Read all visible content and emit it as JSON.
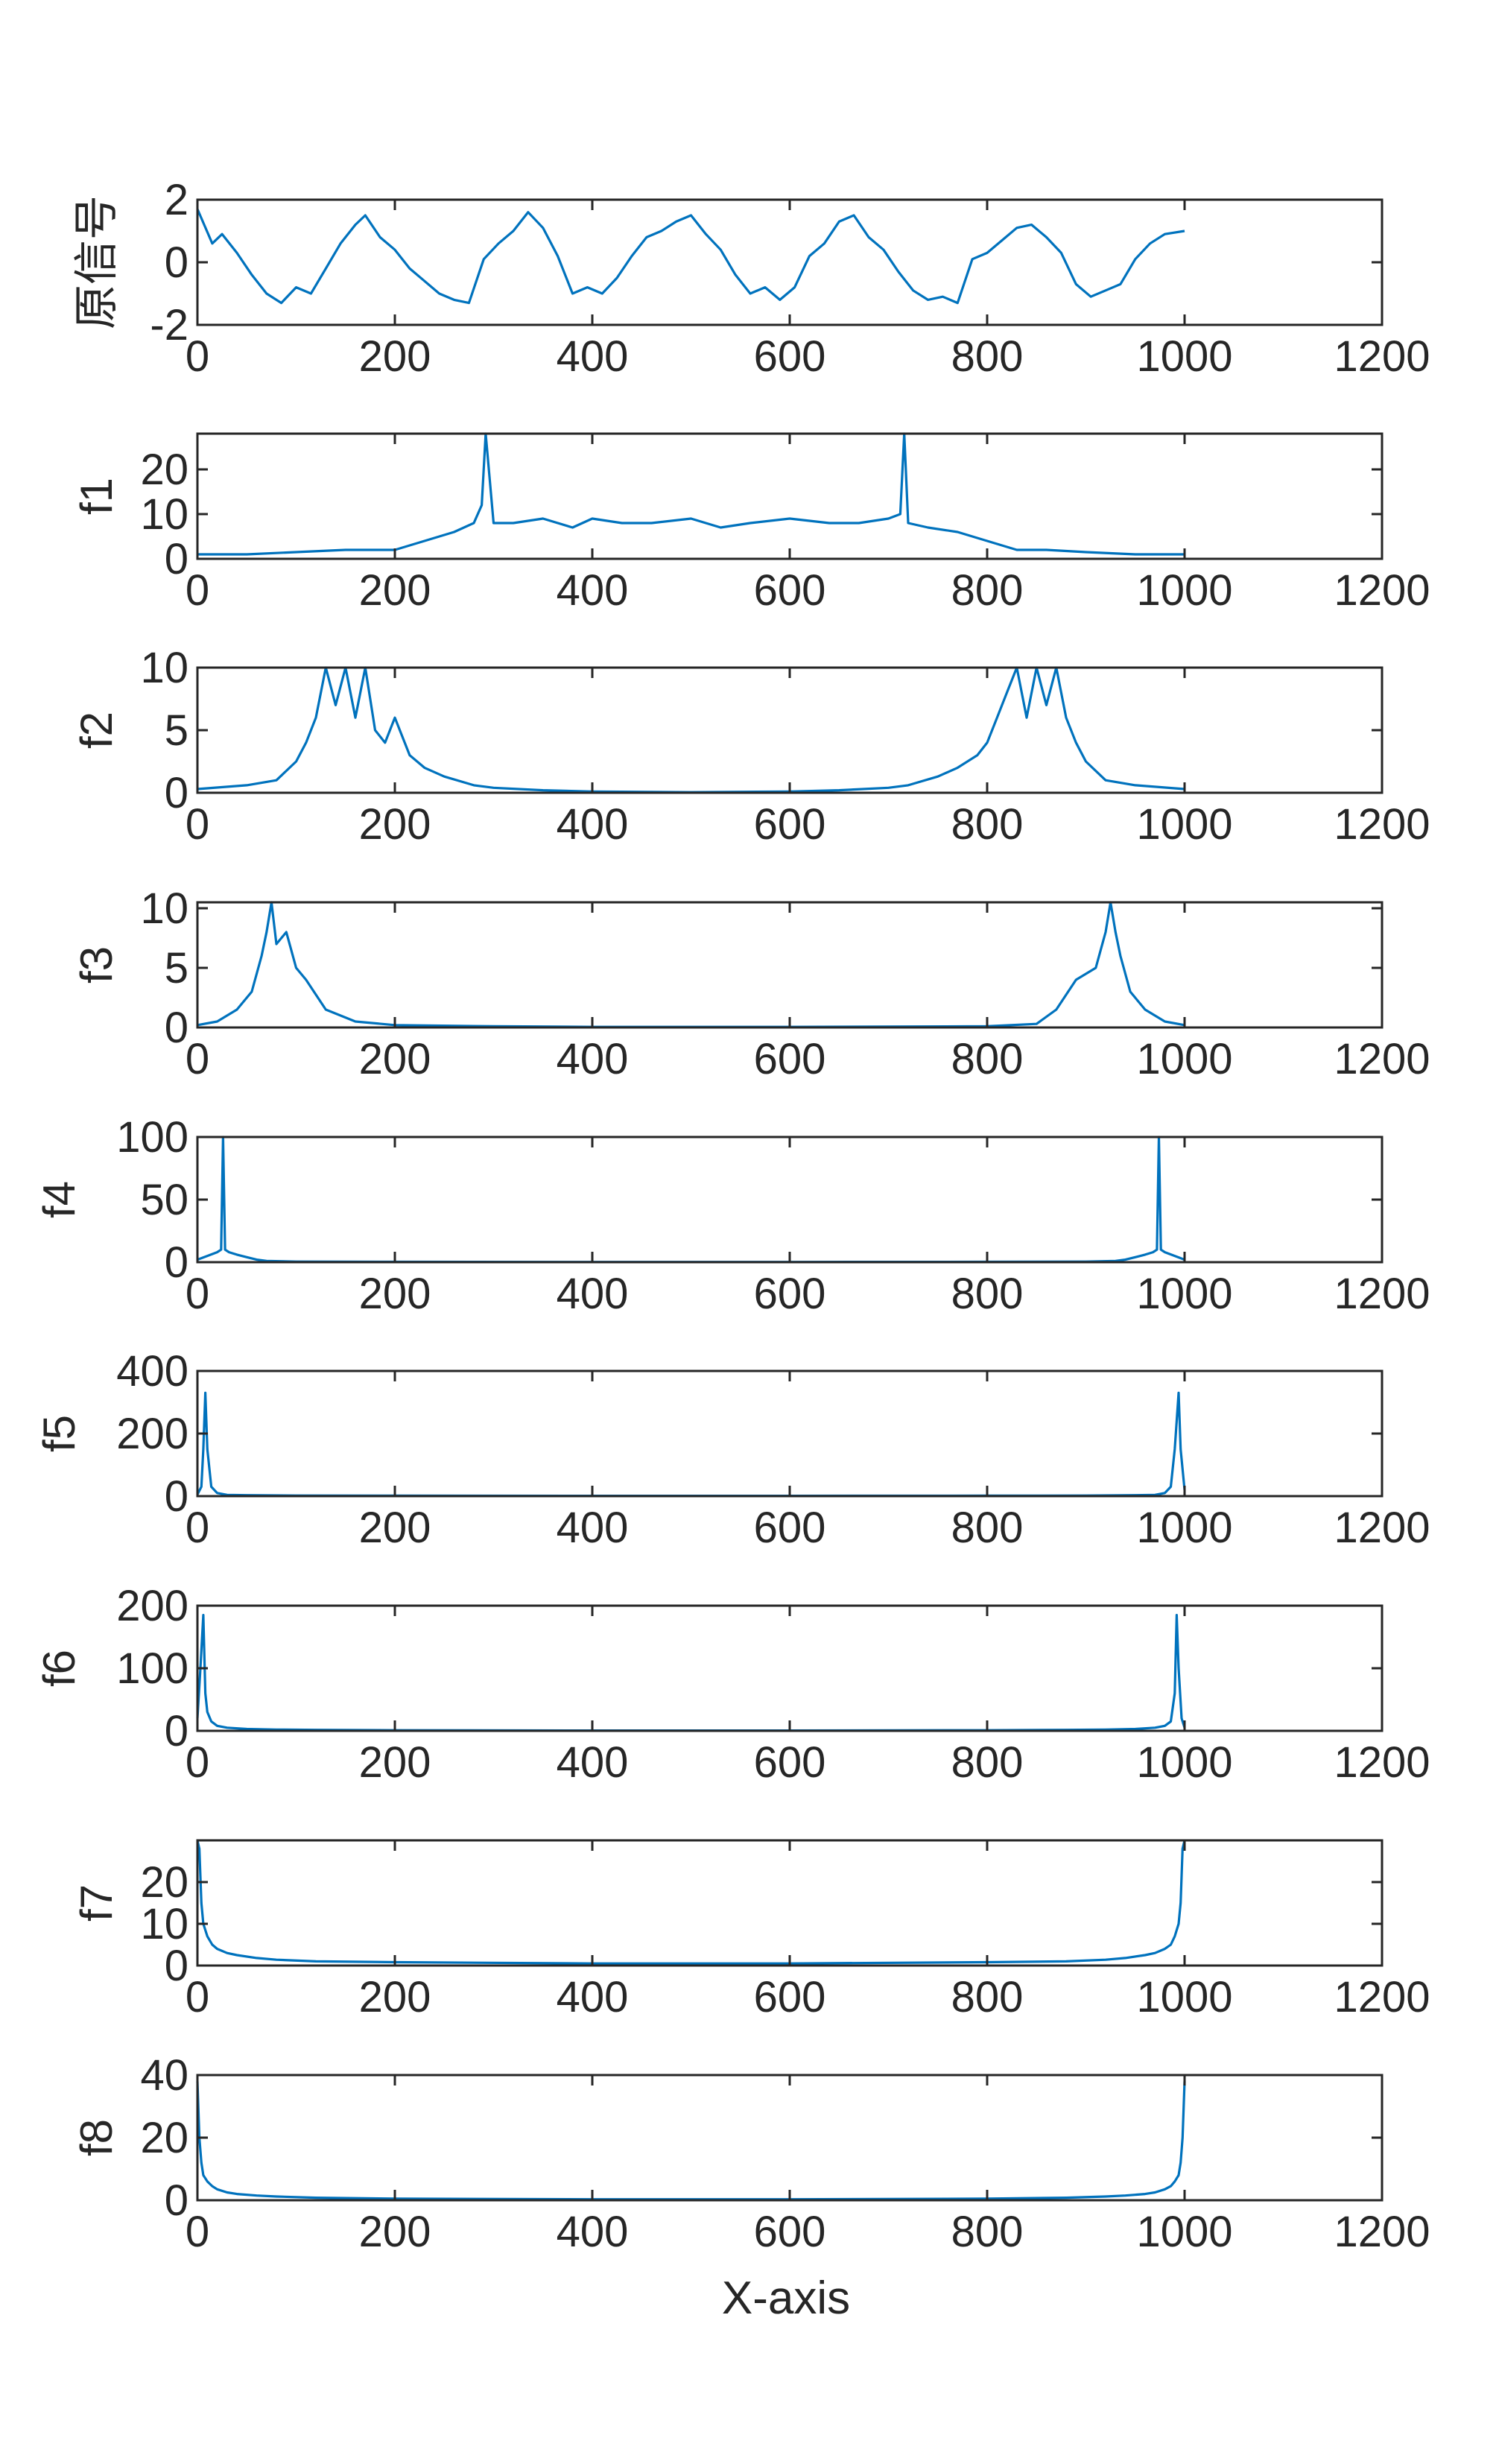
{
  "figure": {
    "xlabel": "X-axis",
    "line_color": "#0072BD",
    "axis_color": "#262626",
    "background": "#ffffff"
  },
  "chart_data": [
    {
      "type": "line",
      "ylabel": "原信号",
      "xlim": [
        0,
        1200
      ],
      "ylim": [
        -2,
        2
      ],
      "xticks": [
        "0",
        "200",
        "400",
        "600",
        "800",
        "1000",
        "1200"
      ],
      "yticks": [
        "-2",
        "0",
        "2"
      ],
      "series": [
        {
          "x": [
            0,
            15,
            25,
            40,
            55,
            70,
            85,
            100,
            115,
            130,
            145,
            160,
            170,
            185,
            200,
            215,
            230,
            245,
            260,
            275,
            290,
            305,
            320,
            335,
            350,
            365,
            380,
            395,
            410,
            425,
            440,
            455,
            470,
            485,
            500,
            515,
            530,
            545,
            560,
            575,
            590,
            605,
            620,
            635,
            650,
            665,
            680,
            695,
            710,
            725,
            740,
            755,
            770,
            785,
            800,
            815,
            830,
            845,
            860,
            875,
            890,
            905,
            920,
            935,
            950,
            965,
            980,
            1000
          ],
          "values": [
            1.7,
            0.6,
            0.9,
            0.3,
            -0.4,
            -1.0,
            -1.3,
            -0.8,
            -1.0,
            -0.2,
            0.6,
            1.2,
            1.5,
            0.8,
            0.4,
            -0.2,
            -0.6,
            -1.0,
            -1.2,
            -1.3,
            0.1,
            0.6,
            1.0,
            1.6,
            1.1,
            0.2,
            -1.0,
            -0.8,
            -1.0,
            -0.5,
            0.2,
            0.8,
            1.0,
            1.3,
            1.5,
            0.9,
            0.4,
            -0.4,
            -1.0,
            -0.8,
            -1.2,
            -0.8,
            0.2,
            0.6,
            1.3,
            1.5,
            0.8,
            0.4,
            -0.3,
            -0.9,
            -1.2,
            -1.1,
            -1.3,
            0.1,
            0.3,
            0.7,
            1.1,
            1.2,
            0.8,
            0.3,
            -0.7,
            -1.1,
            -0.9,
            -0.7,
            0.1,
            0.6,
            0.9,
            1.0
          ]
        }
      ]
    },
    {
      "type": "line",
      "ylabel": "f1",
      "xlim": [
        0,
        1200
      ],
      "ylim": [
        0,
        28
      ],
      "xticks": [
        "0",
        "200",
        "400",
        "600",
        "800",
        "1000",
        "1200"
      ],
      "yticks": [
        "0",
        "10",
        "20"
      ],
      "series": [
        {
          "x": [
            0,
            50,
            100,
            150,
            200,
            230,
            260,
            280,
            288,
            292,
            300,
            320,
            350,
            380,
            400,
            430,
            460,
            500,
            530,
            560,
            600,
            640,
            670,
            700,
            712,
            716,
            720,
            740,
            770,
            800,
            830,
            860,
            900,
            950,
            1000
          ],
          "values": [
            1,
            1,
            1.5,
            2,
            2,
            4,
            6,
            8,
            12,
            28,
            8,
            8,
            9,
            7,
            9,
            8,
            8,
            9,
            7,
            8,
            9,
            8,
            8,
            9,
            10,
            28,
            8,
            7,
            6,
            4,
            2,
            2,
            1.5,
            1,
            1
          ]
        }
      ]
    },
    {
      "type": "line",
      "ylabel": "f2",
      "xlim": [
        0,
        1200
      ],
      "ylim": [
        0,
        10
      ],
      "xticks": [
        "0",
        "200",
        "400",
        "600",
        "800",
        "1000",
        "1200"
      ],
      "yticks": [
        "0",
        "5",
        "10"
      ],
      "series": [
        {
          "x": [
            0,
            50,
            80,
            100,
            110,
            120,
            130,
            140,
            150,
            160,
            170,
            180,
            190,
            200,
            215,
            230,
            250,
            280,
            300,
            350,
            400,
            500,
            600,
            650,
            700,
            720,
            750,
            770,
            790,
            800,
            810,
            820,
            830,
            840,
            850,
            860,
            870,
            880,
            890,
            900,
            920,
            950,
            1000
          ],
          "values": [
            0.3,
            0.6,
            1,
            2.5,
            4,
            6,
            10,
            7,
            10,
            6,
            10,
            5,
            4,
            6,
            3,
            2,
            1.3,
            0.6,
            0.4,
            0.2,
            0.1,
            0.05,
            0.1,
            0.2,
            0.4,
            0.6,
            1.3,
            2,
            3,
            4,
            6,
            8,
            10,
            6,
            10,
            7,
            10,
            6,
            4,
            2.5,
            1,
            0.6,
            0.3
          ]
        }
      ]
    },
    {
      "type": "line",
      "ylabel": "f3",
      "xlim": [
        0,
        1200
      ],
      "ylim": [
        0,
        10.5
      ],
      "xticks": [
        "0",
        "200",
        "400",
        "600",
        "800",
        "1000",
        "1200"
      ],
      "yticks": [
        "0",
        "5",
        "10"
      ],
      "series": [
        {
          "x": [
            0,
            20,
            40,
            55,
            65,
            70,
            75,
            80,
            90,
            100,
            110,
            130,
            160,
            200,
            300,
            400,
            600,
            800,
            850,
            870,
            890,
            910,
            920,
            925,
            930,
            935,
            945,
            960,
            980,
            1000
          ],
          "values": [
            0.2,
            0.5,
            1.5,
            3,
            6,
            8,
            10.5,
            7,
            8,
            5,
            4,
            1.5,
            0.5,
            0.2,
            0.1,
            0.05,
            0.05,
            0.1,
            0.3,
            1.5,
            4,
            5,
            8,
            10.5,
            8,
            6,
            3,
            1.5,
            0.5,
            0.2
          ]
        }
      ]
    },
    {
      "type": "line",
      "ylabel": "f4",
      "xlim": [
        0,
        1200
      ],
      "ylim": [
        0,
        100
      ],
      "xticks": [
        "0",
        "200",
        "400",
        "600",
        "800",
        "1000",
        "1200"
      ],
      "yticks": [
        "0",
        "50",
        "100"
      ],
      "series": [
        {
          "x": [
            0,
            10,
            20,
            24,
            26,
            28,
            32,
            40,
            50,
            60,
            70,
            100,
            200,
            400,
            600,
            800,
            900,
            930,
            940,
            950,
            960,
            968,
            972,
            974,
            976,
            980,
            990,
            1000
          ],
          "values": [
            2,
            5,
            8,
            10,
            100,
            10,
            8,
            6,
            4,
            2,
            1,
            0.5,
            0.3,
            0.2,
            0.2,
            0.3,
            0.5,
            1,
            2,
            4,
            6,
            8,
            10,
            100,
            10,
            8,
            5,
            2
          ]
        }
      ]
    },
    {
      "type": "line",
      "ylabel": "f5",
      "xlim": [
        0,
        1200
      ],
      "ylim": [
        0,
        400
      ],
      "xticks": [
        "0",
        "200",
        "400",
        "600",
        "800",
        "1000",
        "1200"
      ],
      "yticks": [
        "0",
        "200",
        "400"
      ],
      "series": [
        {
          "x": [
            0,
            4,
            6,
            8,
            10,
            14,
            20,
            30,
            50,
            100,
            200,
            400,
            600,
            800,
            900,
            950,
            970,
            980,
            986,
            990,
            994,
            996,
            1000
          ],
          "values": [
            5,
            30,
            150,
            330,
            150,
            30,
            10,
            4,
            3,
            2,
            1.5,
            1,
            1,
            1.5,
            2,
            3,
            4,
            10,
            30,
            150,
            330,
            150,
            20
          ]
        }
      ]
    },
    {
      "type": "line",
      "ylabel": "f6",
      "xlim": [
        0,
        1200
      ],
      "ylim": [
        0,
        200
      ],
      "xticks": [
        "0",
        "200",
        "400",
        "600",
        "800",
        "1000",
        "1200"
      ],
      "yticks": [
        "0",
        "100",
        "200"
      ],
      "series": [
        {
          "x": [
            0,
            3,
            6,
            8,
            10,
            14,
            20,
            30,
            50,
            80,
            120,
            200,
            400,
            600,
            800,
            880,
            920,
            950,
            970,
            980,
            986,
            990,
            992,
            994,
            997,
            1000
          ],
          "values": [
            20,
            100,
            185,
            60,
            30,
            15,
            8,
            5,
            3,
            2,
            1.5,
            1,
            0.5,
            0.5,
            1,
            1.5,
            2,
            3,
            5,
            8,
            15,
            60,
            185,
            100,
            20,
            5
          ]
        }
      ]
    },
    {
      "type": "line",
      "ylabel": "f7",
      "xlim": [
        0,
        1200
      ],
      "ylim": [
        0,
        30
      ],
      "xticks": [
        "0",
        "200",
        "400",
        "600",
        "800",
        "1000",
        "1200"
      ],
      "yticks": [
        "0",
        "10",
        "20"
      ],
      "series": [
        {
          "x": [
            0,
            2,
            4,
            6,
            10,
            15,
            20,
            30,
            40,
            60,
            80,
            120,
            200,
            400,
            600,
            800,
            880,
            920,
            940,
            960,
            970,
            980,
            986,
            990,
            994,
            996,
            998,
            1000
          ],
          "values": [
            30,
            28,
            15,
            10,
            7,
            5,
            4,
            3,
            2.5,
            1.8,
            1.4,
            1,
            0.8,
            0.5,
            0.5,
            0.8,
            1,
            1.4,
            1.8,
            2.5,
            3,
            4,
            5,
            7,
            10,
            15,
            28,
            30
          ]
        }
      ]
    },
    {
      "type": "line",
      "ylabel": "f8",
      "xlim": [
        0,
        1200
      ],
      "ylim": [
        0,
        40
      ],
      "xticks": [
        "0",
        "200",
        "400",
        "600",
        "800",
        "1000",
        "1200"
      ],
      "yticks": [
        "0",
        "20",
        "40"
      ],
      "series": [
        {
          "x": [
            0,
            2,
            4,
            6,
            10,
            15,
            20,
            30,
            40,
            60,
            80,
            120,
            200,
            400,
            600,
            800,
            880,
            920,
            940,
            960,
            970,
            980,
            986,
            990,
            994,
            996,
            998,
            1000
          ],
          "values": [
            38,
            20,
            12,
            8,
            6,
            4.5,
            3.5,
            2.5,
            2,
            1.5,
            1.2,
            0.8,
            0.5,
            0.3,
            0.3,
            0.5,
            0.8,
            1.2,
            1.5,
            2,
            2.5,
            3.5,
            4.5,
            6,
            8,
            12,
            20,
            38
          ]
        }
      ]
    }
  ]
}
